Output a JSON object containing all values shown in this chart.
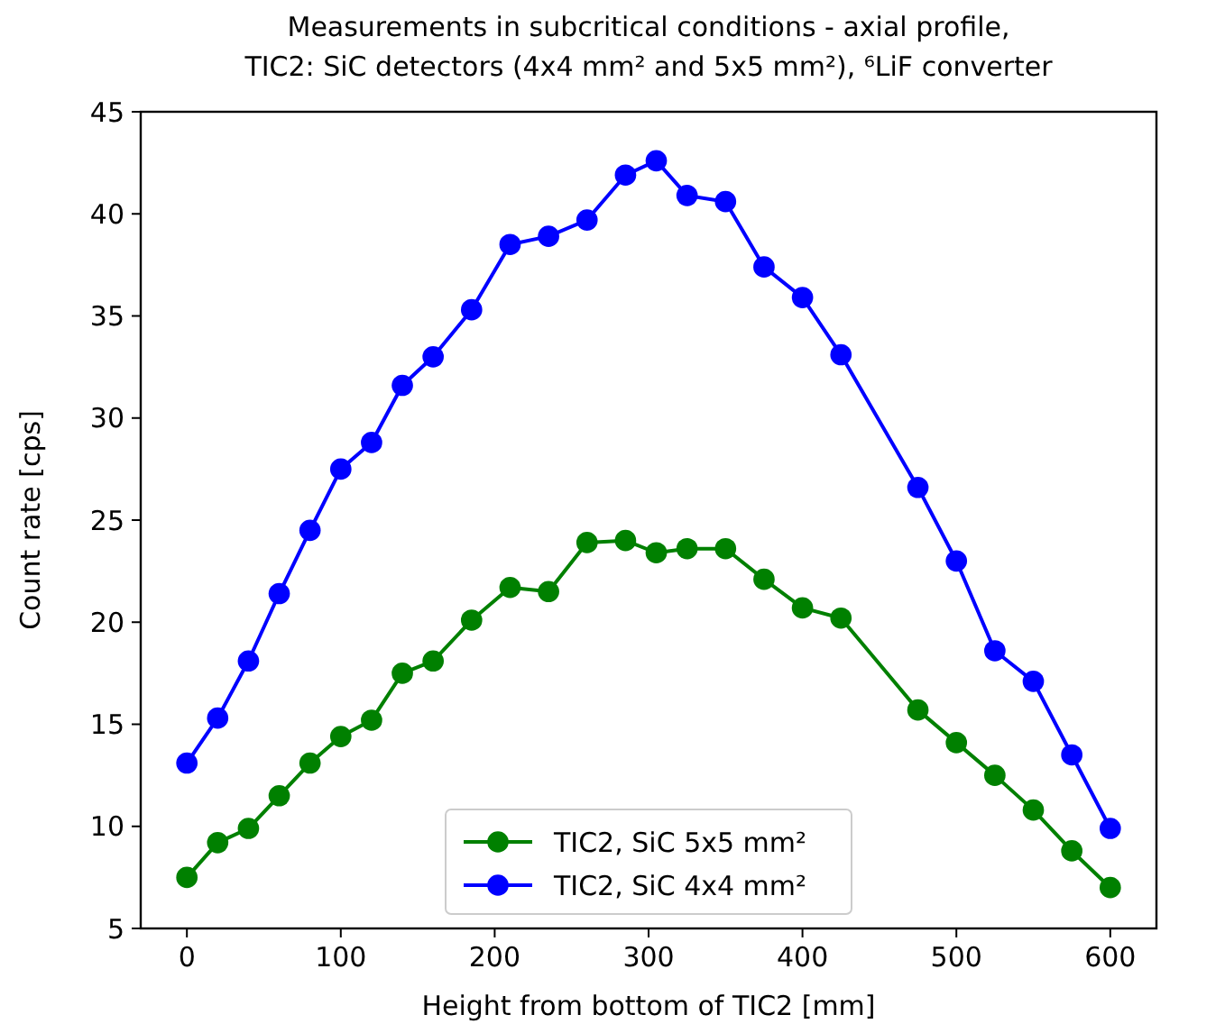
{
  "chart_data": {
    "type": "line",
    "title": "Measurements in subcritical conditions - axial profile,\nTIC2: SiC detectors (4x4 mm² and 5x5 mm²), ⁶LiF converter",
    "xlabel": "Height from bottom of TIC2 [mm]",
    "ylabel": "Count rate [cps]",
    "x": [
      0,
      20,
      40,
      60,
      80,
      100,
      120,
      140,
      160,
      185,
      210,
      235,
      260,
      285,
      305,
      325,
      350,
      375,
      400,
      425,
      475,
      500,
      525,
      550,
      575,
      600
    ],
    "series": [
      {
        "name": "TIC2, SiC 5x5 mm²",
        "color": "#008000",
        "values": [
          7.5,
          9.2,
          9.9,
          11.5,
          13.1,
          14.4,
          15.2,
          17.5,
          18.1,
          20.1,
          21.7,
          21.5,
          23.9,
          24.0,
          23.4,
          23.6,
          23.6,
          22.1,
          20.7,
          20.2,
          15.7,
          14.1,
          12.5,
          10.8,
          8.8,
          7.0
        ]
      },
      {
        "name": "TIC2, SiC 4x4 mm²",
        "color": "#0000ff",
        "values": [
          13.1,
          15.3,
          18.1,
          21.4,
          24.5,
          27.5,
          28.8,
          31.6,
          33.0,
          35.3,
          38.5,
          38.9,
          39.7,
          41.9,
          42.6,
          40.9,
          40.6,
          37.4,
          35.9,
          33.1,
          26.6,
          23.0,
          18.6,
          17.1,
          13.5,
          9.9
        ]
      }
    ],
    "xlim": [
      -30,
      630
    ],
    "ylim": [
      5,
      45
    ],
    "xticks": [
      0,
      100,
      200,
      300,
      400,
      500,
      600
    ],
    "yticks": [
      5,
      10,
      15,
      20,
      25,
      30,
      35,
      40,
      45
    ],
    "marker": "circle",
    "legend": "bottom",
    "grid": false
  }
}
